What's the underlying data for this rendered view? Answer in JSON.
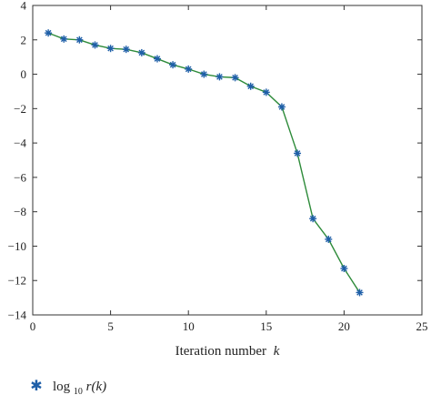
{
  "chart_data": {
    "type": "line",
    "title": "",
    "xlabel_prefix": "Iteration number",
    "xlabel_var": "k",
    "ylabel": "",
    "xlim": [
      0,
      25
    ],
    "ylim": [
      -14,
      4
    ],
    "xticks": [
      0,
      5,
      10,
      15,
      20,
      25
    ],
    "yticks": [
      4,
      2,
      0,
      -2,
      -4,
      -6,
      -8,
      -10,
      -12,
      -14
    ],
    "grid": false,
    "legend_placement": "bottom-left",
    "series": [
      {
        "name": "log10 r(k)",
        "legend_base": "log",
        "legend_sub": "10",
        "legend_tail": " r(k)",
        "line_color": "#2e8b3a",
        "marker": "asterisk",
        "marker_color": "#1f5fa8",
        "x": [
          1,
          2,
          3,
          4,
          5,
          6,
          7,
          8,
          9,
          10,
          11,
          12,
          13,
          14,
          15,
          16,
          17,
          18,
          19,
          20,
          21
        ],
        "y": [
          2.4,
          2.05,
          2.0,
          1.7,
          1.5,
          1.45,
          1.25,
          0.9,
          0.55,
          0.3,
          0.0,
          -0.15,
          -0.2,
          -0.7,
          -1.05,
          -1.9,
          -4.6,
          -8.4,
          -9.6,
          -11.3,
          -12.7
        ]
      }
    ]
  }
}
